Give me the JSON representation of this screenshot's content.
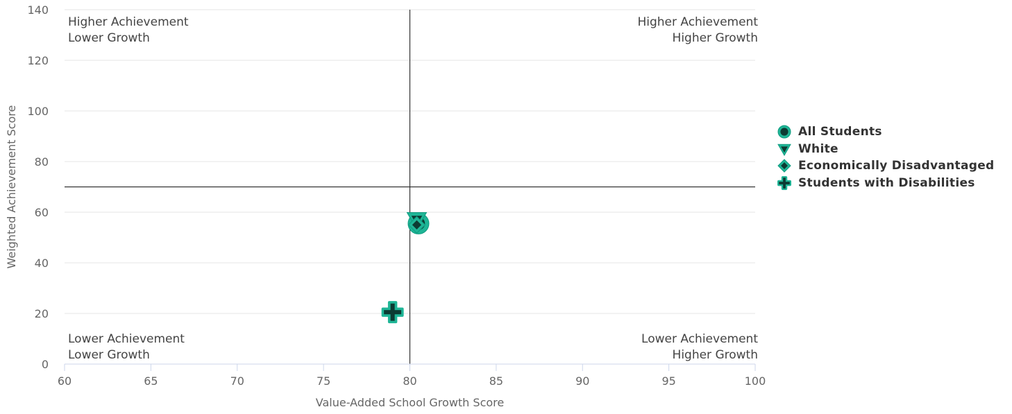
{
  "chart_data": {
    "type": "scatter",
    "title": "",
    "xlabel": "Value-Added School Growth Score",
    "ylabel": "Weighted Achievement Score",
    "xlim": [
      60,
      100
    ],
    "ylim": [
      0,
      140
    ],
    "x_ticks": [
      60,
      65,
      70,
      75,
      80,
      85,
      90,
      95,
      100
    ],
    "y_ticks": [
      0,
      20,
      40,
      60,
      80,
      100,
      120,
      140
    ],
    "grid": "horizontal",
    "reference_lines": {
      "x": 80,
      "y": 70
    },
    "quadrant_labels": {
      "top_left": [
        "Higher Achievement",
        "Lower Growth"
      ],
      "top_right": [
        "Higher Achievement",
        "Higher Growth"
      ],
      "bottom_left": [
        "Lower Achievement",
        "Lower Growth"
      ],
      "bottom_right": [
        "Lower Achievement",
        "Higher Growth"
      ]
    },
    "legend_position": "right",
    "series": [
      {
        "name": "All Students",
        "marker": "circle",
        "x": 80.5,
        "y": 55.5
      },
      {
        "name": "White",
        "marker": "triangle-down",
        "x": 80.4,
        "y": 57
      },
      {
        "name": "Economically Disadvantaged",
        "marker": "diamond",
        "x": 80.4,
        "y": 55
      },
      {
        "name": "Students with Disabilities",
        "marker": "cross",
        "x": 79,
        "y": 20.5
      }
    ],
    "colors": {
      "fill": "#1fb596",
      "stroke": "#0f9c80",
      "inner": "#0d3b33"
    }
  }
}
